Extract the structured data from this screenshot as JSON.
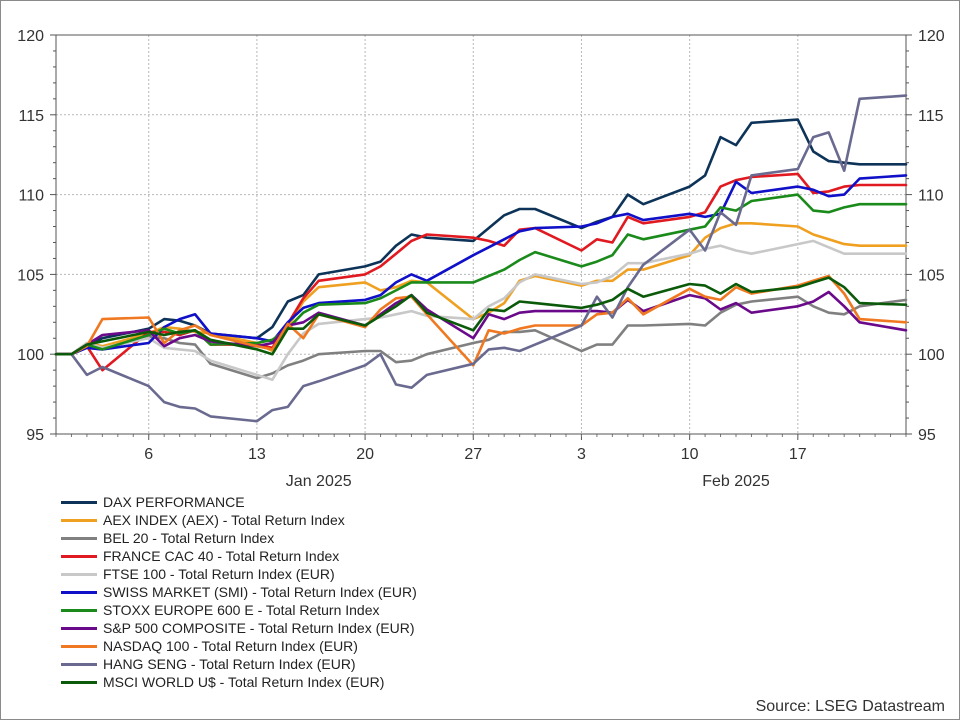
{
  "chart_data": {
    "type": "line",
    "ylim": [
      95,
      120
    ],
    "yticks": [
      95,
      100,
      105,
      110,
      115,
      120
    ],
    "xlim": [
      "2024-12-31",
      "2025-02-24"
    ],
    "x_day_ticks": [
      {
        "date": "2025-01-06",
        "label": "6"
      },
      {
        "date": "2025-01-13",
        "label": "13"
      },
      {
        "date": "2025-01-20",
        "label": "20"
      },
      {
        "date": "2025-01-27",
        "label": "27"
      },
      {
        "date": "2025-02-03",
        "label": "3"
      },
      {
        "date": "2025-02-10",
        "label": "10"
      },
      {
        "date": "2025-02-17",
        "label": "17"
      }
    ],
    "x_month_labels": [
      {
        "date": "2025-01-17",
        "label": "Jan 2025"
      },
      {
        "date": "2025-02-13",
        "label": "Feb 2025"
      }
    ],
    "grid": true,
    "legend_position": "bottom",
    "x": [
      "2024-12-31",
      "2025-01-01",
      "2025-01-02",
      "2025-01-03",
      "2025-01-06",
      "2025-01-07",
      "2025-01-08",
      "2025-01-09",
      "2025-01-10",
      "2025-01-13",
      "2025-01-14",
      "2025-01-15",
      "2025-01-16",
      "2025-01-17",
      "2025-01-20",
      "2025-01-21",
      "2025-01-22",
      "2025-01-23",
      "2025-01-24",
      "2025-01-27",
      "2025-01-28",
      "2025-01-29",
      "2025-01-30",
      "2025-01-31",
      "2025-02-03",
      "2025-02-04",
      "2025-02-05",
      "2025-02-06",
      "2025-02-07",
      "2025-02-10",
      "2025-02-11",
      "2025-02-12",
      "2025-02-13",
      "2025-02-14",
      "2025-02-17",
      "2025-02-18",
      "2025-02-19",
      "2025-02-20",
      "2025-02-21",
      "2025-02-24"
    ],
    "series": [
      {
        "name": "DAX PERFORMANCE",
        "color": "#0d3358",
        "values": [
          100,
          100,
          100.5,
          101,
          101.6,
          102.2,
          102.1,
          101.8,
          101.3,
          101.0,
          101.7,
          103.3,
          103.7,
          105.0,
          105.5,
          105.8,
          106.8,
          107.5,
          107.3,
          107.1,
          107.9,
          108.7,
          109.1,
          109.1,
          107.9,
          108.3,
          108.6,
          110.0,
          109.4,
          110.5,
          111.2,
          113.6,
          113.1,
          114.5,
          114.7,
          112.7,
          112.1,
          112.0,
          111.9,
          111.9
        ]
      },
      {
        "name": "AEX INDEX (AEX) - Total Return Index",
        "color": "#f0a020",
        "values": [
          100,
          100,
          100.7,
          100.5,
          101.3,
          101.7,
          101.6,
          101.4,
          101.3,
          100.7,
          100.2,
          101.7,
          103.3,
          104.2,
          104.5,
          104.0,
          104.2,
          104.6,
          104.5,
          102.2,
          102.6,
          103.2,
          104.6,
          104.9,
          104.3,
          104.6,
          104.6,
          105.3,
          105.3,
          106.2,
          107.3,
          107.9,
          108.2,
          108.2,
          108.0,
          107.5,
          107.2,
          106.9,
          106.8,
          106.8
        ]
      },
      {
        "name": "BEL 20 - Total Return Index",
        "color": "#808080",
        "values": [
          100,
          100,
          100.4,
          100.3,
          101.1,
          101.0,
          100.7,
          100.6,
          99.4,
          98.5,
          98.8,
          99.3,
          99.6,
          100.0,
          100.2,
          100.2,
          99.5,
          99.6,
          100.0,
          100.7,
          100.9,
          101.4,
          101.4,
          101.5,
          100.2,
          100.6,
          100.6,
          101.8,
          101.8,
          101.9,
          101.8,
          102.6,
          103.1,
          103.3,
          103.6,
          103.0,
          102.6,
          102.5,
          103.0,
          103.4
        ]
      },
      {
        "name": "FRANCE CAC 40 - Total Return Index",
        "color": "#e01a20",
        "values": [
          100,
          100,
          100.5,
          99.0,
          101.4,
          101.4,
          101.2,
          101.5,
          100.6,
          100.6,
          100.4,
          101.9,
          103.5,
          104.6,
          105.0,
          105.5,
          106.3,
          107.1,
          107.5,
          107.3,
          107.1,
          106.8,
          107.8,
          107.9,
          106.5,
          107.2,
          107.0,
          108.6,
          108.2,
          108.6,
          108.9,
          110.5,
          110.9,
          111.1,
          111.3,
          110.1,
          110.2,
          110.5,
          110.6,
          110.6
        ]
      },
      {
        "name": "FTSE 100 - Total Return Index (EUR)",
        "color": "#c8c8c8",
        "values": [
          100,
          100,
          100.7,
          100.4,
          101.0,
          100.4,
          100.3,
          100.2,
          99.6,
          98.7,
          98.4,
          100.0,
          101.3,
          101.9,
          102.2,
          102.3,
          102.5,
          102.7,
          102.4,
          102.2,
          103.0,
          103.5,
          104.5,
          105.0,
          104.4,
          104.5,
          104.9,
          105.7,
          105.7,
          106.3,
          106.6,
          106.8,
          106.5,
          106.3,
          106.9,
          107.1,
          106.7,
          106.3,
          106.3,
          106.3
        ]
      },
      {
        "name": "SWISS MARKET (SMI) - Total Return Index (EUR)",
        "color": "#1010c8",
        "values": [
          100,
          100,
          100.4,
          100.3,
          100.7,
          101.7,
          102.2,
          102.5,
          101.3,
          101.0,
          100.8,
          102.0,
          102.9,
          103.2,
          103.4,
          103.7,
          104.5,
          105.0,
          104.6,
          106.2,
          106.7,
          107.2,
          107.7,
          107.9,
          108.0,
          108.2,
          108.6,
          108.8,
          108.4,
          108.8,
          108.6,
          108.8,
          110.8,
          110.1,
          110.5,
          110.3,
          109.9,
          110.0,
          111.0,
          111.2
        ]
      },
      {
        "name": "STOXX EUROPE 600 E - Total Return Index",
        "color": "#1a8a1a",
        "values": [
          100,
          100,
          100.6,
          100.3,
          101.2,
          101.6,
          101.3,
          101.5,
          100.6,
          100.7,
          100.9,
          101.6,
          102.6,
          103.1,
          103.2,
          103.5,
          104.0,
          104.5,
          104.5,
          104.5,
          104.9,
          105.3,
          105.9,
          106.4,
          105.5,
          105.8,
          106.2,
          107.5,
          107.2,
          107.8,
          108.0,
          109.2,
          109.0,
          109.6,
          110.0,
          109.0,
          108.9,
          109.2,
          109.4,
          109.4
        ]
      },
      {
        "name": "S&P 500 COMPOSITE - Total Return Index (EUR)",
        "color": "#6a0a8a",
        "values": [
          100,
          100,
          100.6,
          101.2,
          101.5,
          100.5,
          101.0,
          101.2,
          100.8,
          100.5,
          100.7,
          101.8,
          102.0,
          102.6,
          101.8,
          102.5,
          103.2,
          103.7,
          102.8,
          101.0,
          102.5,
          102.2,
          102.6,
          102.7,
          102.7,
          102.7,
          102.6,
          103.4,
          102.7,
          103.7,
          103.5,
          102.8,
          103.2,
          102.6,
          103.0,
          103.3,
          103.9,
          103.0,
          102.0,
          101.5
        ]
      },
      {
        "name": "NASDAQ 100 - Total Return Index (EUR)",
        "color": "#f07820",
        "values": [
          100,
          100,
          100.5,
          102.2,
          102.3,
          100.7,
          101.5,
          101.8,
          101.2,
          100.5,
          100.3,
          101.9,
          101.0,
          102.5,
          101.7,
          102.8,
          103.5,
          103.6,
          102.5,
          99.3,
          101.5,
          101.3,
          101.6,
          101.8,
          101.8,
          102.5,
          102.6,
          103.5,
          102.5,
          104.1,
          103.6,
          103.4,
          104.2,
          103.8,
          104.3,
          104.6,
          104.9,
          103.8,
          102.2,
          102.0
        ]
      },
      {
        "name": "HANG SENG - Total Return Index (EUR)",
        "color": "#6a6a90",
        "values": [
          100,
          100,
          98.7,
          99.2,
          98.0,
          97.0,
          96.7,
          96.6,
          96.1,
          95.8,
          96.5,
          96.7,
          98.0,
          98.3,
          99.3,
          100.0,
          98.1,
          97.9,
          98.7,
          99.4,
          100.3,
          100.4,
          100.2,
          100.6,
          101.8,
          103.6,
          102.3,
          104.2,
          105.6,
          107.8,
          106.5,
          108.9,
          108.1,
          111.2,
          111.6,
          113.6,
          113.9,
          111.5,
          116.0,
          116.2
        ]
      },
      {
        "name": "MSCI WORLD U$ - Total Return Index (EUR)",
        "color": "#0a5a0a",
        "values": [
          100,
          100,
          100.6,
          100.8,
          101.4,
          101.2,
          101.4,
          101.5,
          100.9,
          100.3,
          100.0,
          101.6,
          101.6,
          102.5,
          101.8,
          102.4,
          103.0,
          103.7,
          102.6,
          101.5,
          102.8,
          102.7,
          103.3,
          103.2,
          102.9,
          103.1,
          103.4,
          104.1,
          103.6,
          104.4,
          104.3,
          103.8,
          104.4,
          103.9,
          104.2,
          104.5,
          104.8,
          104.2,
          103.2,
          103.1
        ]
      }
    ]
  },
  "source_text": "Source: LSEG Datastream"
}
